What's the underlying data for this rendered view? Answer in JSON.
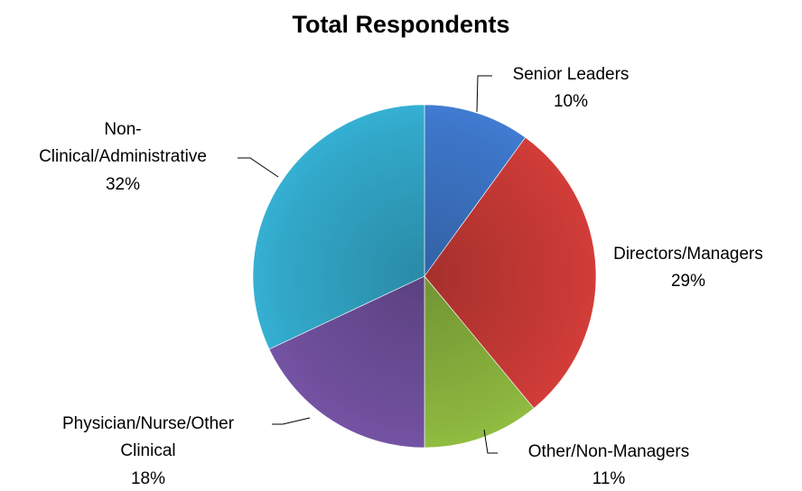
{
  "chart_data": {
    "type": "pie",
    "title": "Total Respondents",
    "categories": [
      "Senior Leaders",
      "Directors/Managers",
      "Other/Non-Managers",
      "Physician/Nurse/Other Clinical",
      "Non-Clinical/Administrative"
    ],
    "values": [
      10,
      29,
      11,
      18,
      32
    ],
    "value_labels": [
      "10%",
      "29%",
      "11%",
      "18%",
      "32%"
    ],
    "label_lines": [
      [
        "Senior Leaders"
      ],
      [
        "Directors/Managers"
      ],
      [
        "Other/Non-Managers"
      ],
      [
        "Physician/Nurse/Other",
        "Clinical"
      ],
      [
        "Non-",
        "Clinical/Administrative"
      ]
    ],
    "colors": [
      "#3d76c8",
      "#c93a36",
      "#8ab43e",
      "#6f4f9c",
      "#32a8c9"
    ],
    "legend": "none"
  }
}
